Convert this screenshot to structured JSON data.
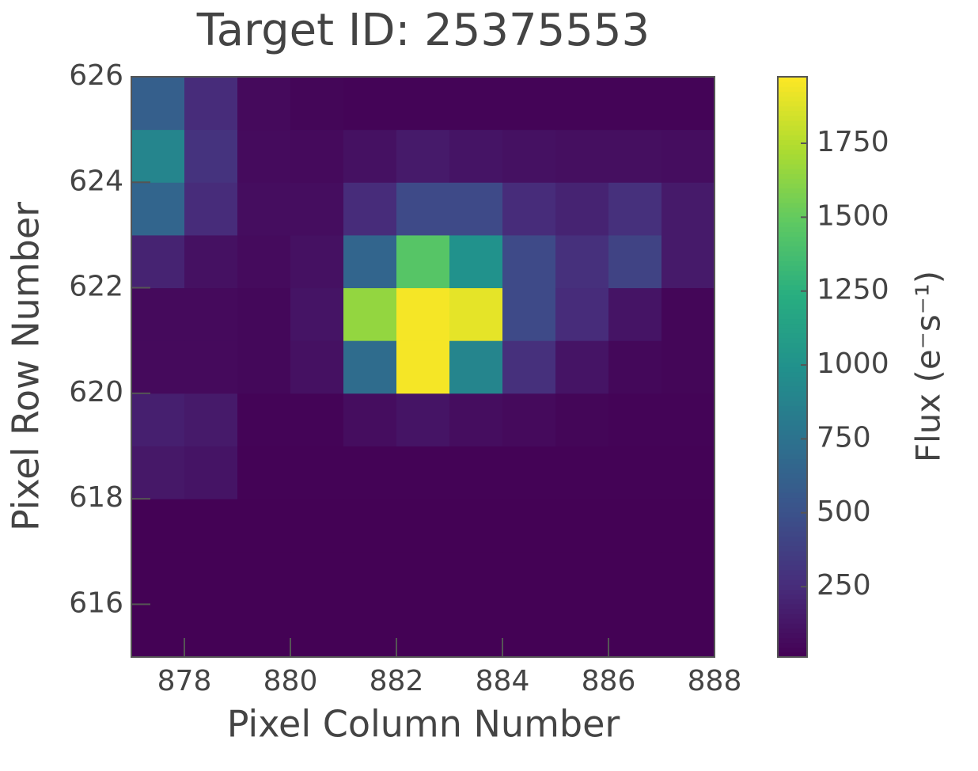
{
  "chart_data": {
    "type": "heatmap",
    "title": "Target ID: 25375553",
    "x_label": "Pixel Column Number",
    "y_label": "Pixel Row Number",
    "colorbar_label": "Flux (e⁻s⁻¹)",
    "colormap": "viridis",
    "x": [
      877,
      878,
      879,
      880,
      881,
      882,
      883,
      884,
      885,
      886,
      887
    ],
    "y": [
      615,
      616,
      617,
      618,
      619,
      620,
      621,
      622,
      623,
      624,
      625
    ],
    "z": [
      [
        20,
        20,
        20,
        20,
        20,
        20,
        20,
        20,
        20,
        20,
        20
      ],
      [
        20,
        20,
        20,
        20,
        20,
        20,
        20,
        20,
        20,
        20,
        20
      ],
      [
        20,
        20,
        20,
        20,
        20,
        20,
        20,
        20,
        20,
        20,
        20
      ],
      [
        140,
        120,
        25,
        25,
        25,
        25,
        25,
        25,
        25,
        25,
        25
      ],
      [
        180,
        150,
        30,
        30,
        80,
        120,
        80,
        60,
        40,
        30,
        30
      ],
      [
        60,
        60,
        50,
        100,
        700,
        1950,
        900,
        280,
        120,
        50,
        40
      ],
      [
        60,
        60,
        50,
        120,
        1650,
        1950,
        1900,
        450,
        250,
        120,
        40
      ],
      [
        200,
        100,
        70,
        100,
        650,
        1450,
        1000,
        450,
        280,
        400,
        150
      ],
      [
        650,
        250,
        80,
        80,
        250,
        450,
        450,
        250,
        200,
        280,
        150
      ],
      [
        900,
        300,
        70,
        60,
        100,
        150,
        120,
        100,
        90,
        90,
        80
      ],
      [
        600,
        250,
        60,
        40,
        30,
        30,
        30,
        30,
        30,
        30,
        30
      ]
    ],
    "xlim": [
      877,
      888
    ],
    "ylim": [
      615,
      626
    ],
    "xticks": [
      878,
      880,
      882,
      884,
      886,
      888
    ],
    "yticks": [
      616,
      618,
      620,
      622,
      624,
      626
    ],
    "clim": [
      12,
      1975
    ],
    "cticks": [
      250,
      500,
      750,
      1000,
      1250,
      1500,
      1750
    ]
  }
}
